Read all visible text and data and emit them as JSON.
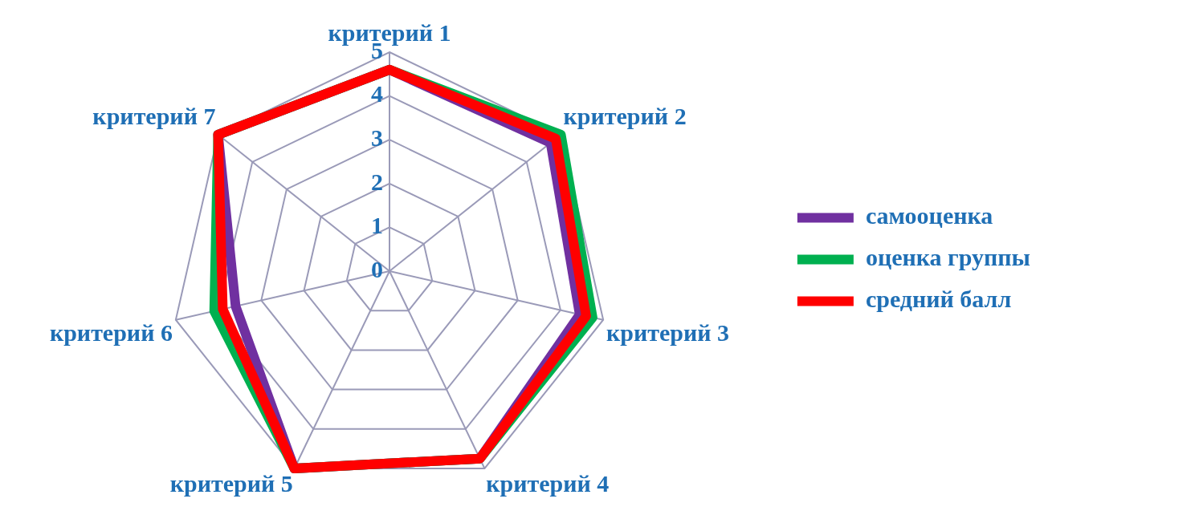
{
  "chart_data": {
    "type": "radar",
    "categories": [
      "критерий 1",
      "критерий 2",
      "критерий 3",
      "критерий 4",
      "критерий 5",
      "критерий 6",
      "критерий 7"
    ],
    "series": [
      {
        "name": "самооценка",
        "color": "#7030a0",
        "values": [
          4.6,
          4.7,
          4.45,
          4.75,
          5,
          3.6,
          5
        ]
      },
      {
        "name": "оценка группы",
        "color": "#00b050",
        "values": [
          4.6,
          5,
          4.75,
          4.75,
          5,
          4.1,
          5
        ]
      },
      {
        "name": "средний балл",
        "color": "#ff0000",
        "values": [
          4.6,
          4.85,
          4.6,
          4.75,
          5,
          3.9,
          5
        ]
      }
    ],
    "ylim": [
      0,
      5
    ],
    "yticks": [
      0,
      1,
      2,
      3,
      4,
      5
    ],
    "grid": true,
    "legend": "right",
    "marker": "none",
    "line_style": "solid"
  }
}
